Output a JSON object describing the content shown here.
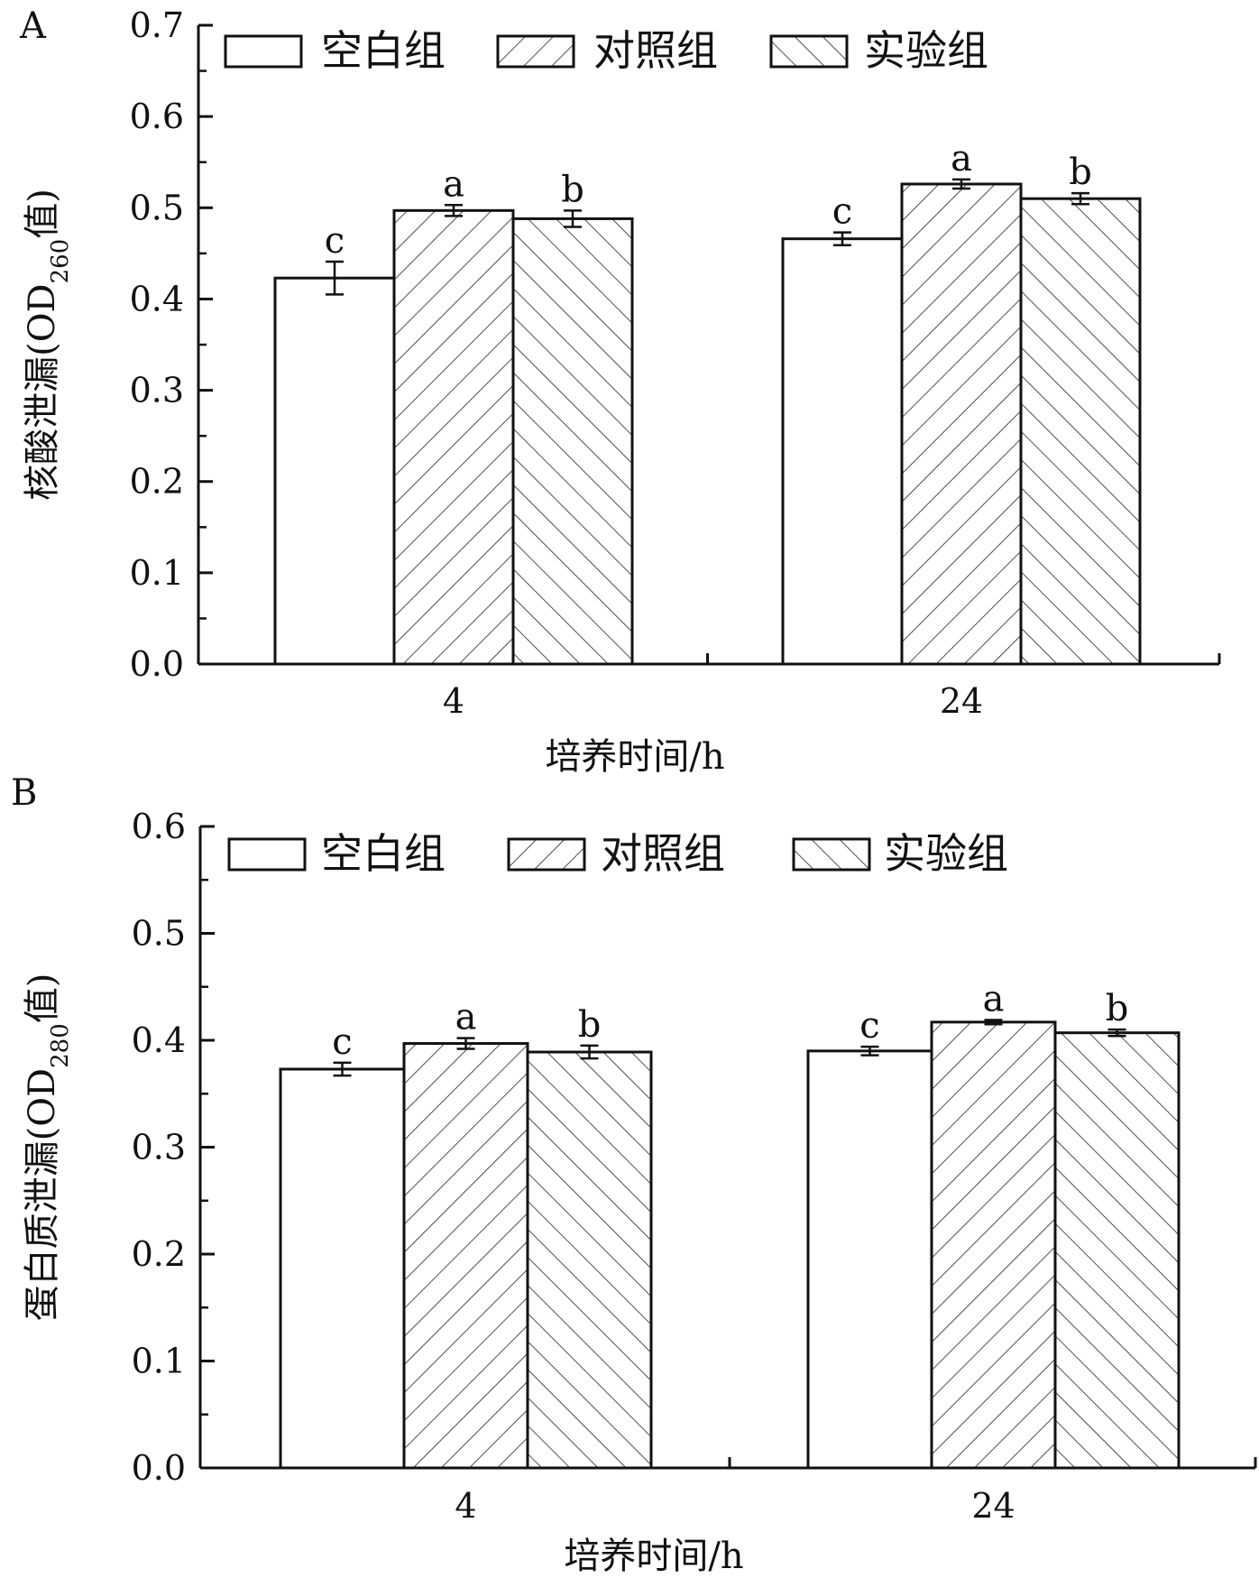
{
  "chart_data": [
    {
      "type": "bar",
      "panel_label": "A",
      "categories": [
        "4",
        "24"
      ],
      "series": [
        {
          "name": "空白组",
          "pattern": "none",
          "values": [
            0.423,
            0.466
          ],
          "errors": [
            0.018,
            0.007
          ],
          "letters": [
            "c",
            "c"
          ]
        },
        {
          "name": "对照组",
          "pattern": "forward-hatch",
          "values": [
            0.497,
            0.526
          ],
          "errors": [
            0.006,
            0.005
          ],
          "letters": [
            "a",
            "a"
          ]
        },
        {
          "name": "实验组",
          "pattern": "back-hatch",
          "values": [
            0.488,
            0.51
          ],
          "errors": [
            0.009,
            0.006
          ],
          "letters": [
            "b",
            "b"
          ]
        }
      ],
      "ylabel": "核酸泄漏(OD",
      "ylabel_sub": "260",
      "ylabel_tail": "值)",
      "xlabel": "培养时间/h",
      "ylim": [
        0.0,
        0.7
      ],
      "yticks": [
        "0.0",
        "0.1",
        "0.2",
        "0.3",
        "0.4",
        "0.5",
        "0.6",
        "0.7"
      ],
      "legend_position": "top-left",
      "grid": false
    },
    {
      "type": "bar",
      "panel_label": "B",
      "categories": [
        "4",
        "24"
      ],
      "series": [
        {
          "name": "空白组",
          "pattern": "none",
          "values": [
            0.373,
            0.39
          ],
          "errors": [
            0.006,
            0.004
          ],
          "letters": [
            "c",
            "c"
          ]
        },
        {
          "name": "对照组",
          "pattern": "forward-hatch",
          "values": [
            0.397,
            0.417
          ],
          "errors": [
            0.005,
            0.002
          ],
          "letters": [
            "a",
            "a"
          ]
        },
        {
          "name": "实验组",
          "pattern": "back-hatch",
          "values": [
            0.389,
            0.407
          ],
          "errors": [
            0.006,
            0.003
          ],
          "letters": [
            "b",
            "b"
          ]
        }
      ],
      "ylabel": "蛋白质泄漏(OD",
      "ylabel_sub": "280",
      "ylabel_tail": "值)",
      "xlabel": "培养时间/h",
      "ylim": [
        0.0,
        0.6
      ],
      "yticks": [
        "0.0",
        "0.1",
        "0.2",
        "0.3",
        "0.4",
        "0.5",
        "0.6"
      ],
      "legend_position": "top-left",
      "grid": false
    }
  ]
}
